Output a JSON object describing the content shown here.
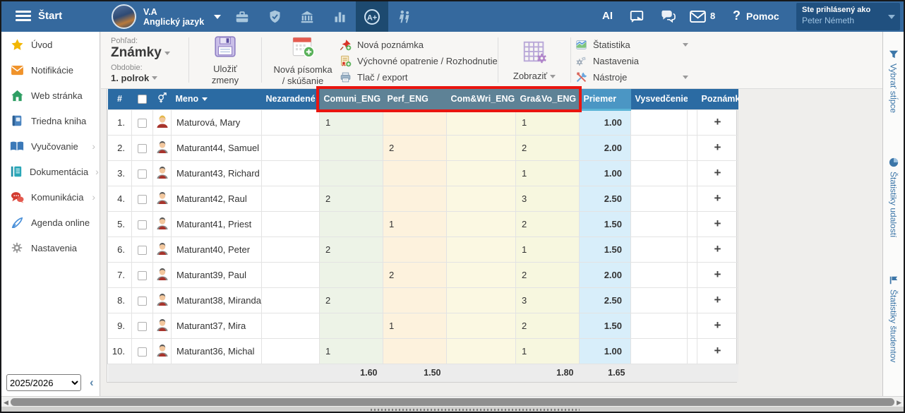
{
  "topbar": {
    "start_label": "Štart",
    "profile": {
      "class_name": "V.A",
      "subject": "Anglický jazyk"
    },
    "modules": [
      {
        "icon": "briefcase",
        "active": false
      },
      {
        "icon": "shield-check",
        "active": false
      },
      {
        "icon": "institution",
        "active": false
      },
      {
        "icon": "bar-chart",
        "active": false
      },
      {
        "icon": "grades-a-plus",
        "active": true
      },
      {
        "icon": "students",
        "active": false
      }
    ],
    "ai_label": "AI",
    "mail_badge": "8",
    "help_qmark": "?",
    "help_label": "Pomoc",
    "login": {
      "caption": "Ste prihlásený ako",
      "user": "Peter Németh"
    }
  },
  "sidebar": {
    "items": [
      {
        "label": "Úvod",
        "icon": "star",
        "chevron": false
      },
      {
        "label": "Notifikácie",
        "icon": "envelope",
        "chevron": false
      },
      {
        "label": "Web stránka",
        "icon": "house",
        "chevron": false
      },
      {
        "label": "Triedna kniha",
        "icon": "notebook",
        "chevron": false
      },
      {
        "label": "Vyučovanie",
        "icon": "open-book",
        "chevron": true
      },
      {
        "label": "Dokumentácia",
        "icon": "document",
        "chevron": true
      },
      {
        "label": "Komunikácia",
        "icon": "chat-bubbles",
        "chevron": true
      },
      {
        "label": "Agenda online",
        "icon": "pen",
        "chevron": false
      },
      {
        "label": "Nastavenia",
        "icon": "gear",
        "chevron": false
      }
    ],
    "year_select": "2025/2026"
  },
  "toolbar": {
    "view_label": "Pohľad:",
    "view_value": "Známky",
    "period_label": "Obdobie:",
    "period_value": "1. polrok",
    "save_button": {
      "lines": [
        "Uložiť",
        "zmeny"
      ],
      "icon": "floppy"
    },
    "new_test_button": {
      "lines": [
        "Nová písomka",
        "/ skúšanie"
      ],
      "icon": "calendar-plus"
    },
    "actions": [
      {
        "label": "Nová poznámka",
        "icon": "pin-plus",
        "caret": false
      },
      {
        "label": "Výchovné opatrenie / Rozhodnutie",
        "icon": "decree-plus",
        "caret": false
      },
      {
        "label": "Tlač / export",
        "icon": "printer",
        "caret": false
      }
    ],
    "show_button": {
      "label": "Zobraziť",
      "icon": "grid-gear"
    },
    "panels": [
      {
        "label": "Štatistika",
        "icon": "stats-chart",
        "caret": true
      },
      {
        "label": "Nastavenia",
        "icon": "gears",
        "caret": false
      },
      {
        "label": "Nástroje",
        "icon": "tools",
        "caret": true
      }
    ]
  },
  "table": {
    "header": {
      "num_label": "#",
      "name_label": "Meno",
      "nezaradene_label": "Nezaradené",
      "comuni_label": "Comuni_ENG",
      "perf_label": "Perf_ENG",
      "comwri_label": "Com&Wri_ENG",
      "gravo_label": "Gra&Vo_ENG",
      "priemer_label": "Priemer",
      "vysvedcenie_label": "Vysvedčenie",
      "poznamky_label": "Poznámky"
    },
    "highlighted_columns": [
      "Comuni_ENG",
      "Perf_ENG",
      "Com&Wri_ENG",
      "Gra&Vo_ENG"
    ],
    "rows": [
      {
        "num": "1.",
        "name": "Maturová, Mary",
        "gender": "female",
        "comuni": "1",
        "perf": "",
        "comwri": "",
        "gravo": "1",
        "priemer": "1.00"
      },
      {
        "num": "2.",
        "name": "Maturant44, Samuel",
        "gender": "male",
        "comuni": "",
        "perf": "2",
        "comwri": "",
        "gravo": "2",
        "priemer": "2.00"
      },
      {
        "num": "3.",
        "name": "Maturant43, Richard",
        "gender": "male",
        "comuni": "",
        "perf": "",
        "comwri": "",
        "gravo": "1",
        "priemer": "1.00"
      },
      {
        "num": "4.",
        "name": "Maturant42, Raul",
        "gender": "male",
        "comuni": "2",
        "perf": "",
        "comwri": "",
        "gravo": "3",
        "priemer": "2.50"
      },
      {
        "num": "5.",
        "name": "Maturant41, Priest",
        "gender": "male",
        "comuni": "",
        "perf": "1",
        "comwri": "",
        "gravo": "2",
        "priemer": "1.50"
      },
      {
        "num": "6.",
        "name": "Maturant40, Peter",
        "gender": "male",
        "comuni": "2",
        "perf": "",
        "comwri": "",
        "gravo": "1",
        "priemer": "1.50"
      },
      {
        "num": "7.",
        "name": "Maturant39, Paul",
        "gender": "male",
        "comuni": "",
        "perf": "2",
        "comwri": "",
        "gravo": "2",
        "priemer": "2.00"
      },
      {
        "num": "8.",
        "name": "Maturant38, Miranda",
        "gender": "male",
        "comuni": "2",
        "perf": "",
        "comwri": "",
        "gravo": "3",
        "priemer": "2.50"
      },
      {
        "num": "9.",
        "name": "Maturant37, Mira",
        "gender": "male",
        "comuni": "",
        "perf": "1",
        "comwri": "",
        "gravo": "2",
        "priemer": "1.50"
      },
      {
        "num": "10.",
        "name": "Maturant36, Michal",
        "gender": "male",
        "comuni": "1",
        "perf": "",
        "comwri": "",
        "gravo": "1",
        "priemer": "1.00"
      }
    ],
    "footer": {
      "comuni": "1.60",
      "perf": "1.50",
      "comwri": "",
      "gravo": "1.80",
      "priemer": "1.65"
    },
    "add_note_symbol": "+"
  },
  "right_rail": {
    "items": [
      {
        "label": "Vybrať stĺpce",
        "icon": "filter"
      },
      {
        "label": "Štatistiky udalostí",
        "icon": "pie-chart"
      },
      {
        "label": "Štatistiky študentov",
        "icon": "flag-chart"
      }
    ]
  },
  "colors": {
    "c-topbar": "#35699e",
    "c-header": "#2b6ba3",
    "c-header-hl": "#5e8296",
    "c-header-priemer": "#4b96c4",
    "c-red": "#e9150f"
  }
}
